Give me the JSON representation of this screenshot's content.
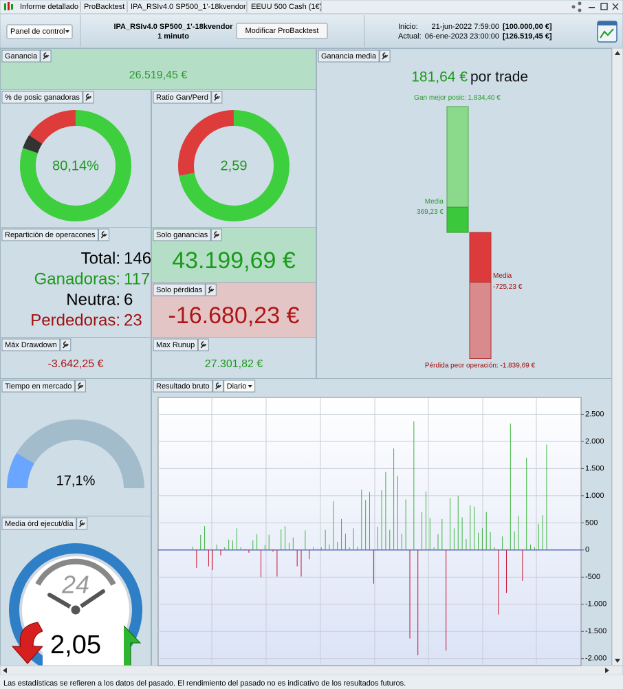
{
  "tabs": [
    "Informe detallado",
    "ProBacktest",
    "IPA_RSIv4.0 SP500_1'-18kvendor",
    "EEUU 500 Cash (1€)"
  ],
  "toolbar": {
    "panel_menu": "Panel de control",
    "strategy": "IPA_RSIv4.0 SP500_1'-18kvendor",
    "timeframe": "1 minuto",
    "button": "Modificar ProBacktest",
    "start_label": "Inicio:",
    "start_date": "21-jun-2022 7:59:00",
    "start_capital": "[100.000,00 €]",
    "current_label": "Actual:",
    "current_date": "06-ene-2023 23:00:00",
    "current_capital": "[126.519,45 €]"
  },
  "gain": {
    "title": "Ganancia",
    "value": "26.519,45 €"
  },
  "avg_gain": {
    "title": "Ganancia media",
    "value": "181,64 €",
    "unit": "por trade",
    "best": {
      "caption": "Gan mejor posic:",
      "value": 1834.4,
      "label": "1.834,40 €"
    },
    "win_mean": {
      "caption": "Media",
      "value": 369.23,
      "label": "369,23 €"
    },
    "loss_mean": {
      "caption": "Media",
      "value": -725.23,
      "label": "-725,23 €"
    },
    "worst": {
      "caption": "Pérdida peor operación:",
      "value": -1839.69,
      "label": "-1.839,69 €"
    }
  },
  "win_pct": {
    "title": "% de posic ganadoras",
    "value": 80.14,
    "label": "80,14%"
  },
  "ratio": {
    "title": "Ratio Gan/Perd",
    "value": 2.59,
    "label": "2,59"
  },
  "split": {
    "title": "Repartición de operacones",
    "total_label": "Total:",
    "total": 146,
    "win_label": "Ganadoras:",
    "win": 117,
    "neutral_label": "Neutra:",
    "neutral": 6,
    "loss_label": "Perdedoras:",
    "loss": 23
  },
  "only_gains": {
    "title": "Solo ganancias",
    "value": "43.199,69 €"
  },
  "only_losses": {
    "title": "Solo pérdidas",
    "value": "-16.680,23 €"
  },
  "drawdown": {
    "title": "Máx Drawdown",
    "value": "-3.642,25 €"
  },
  "runup": {
    "title": "Max Runup",
    "value": "27.301,82 €"
  },
  "market_time": {
    "title": "Tiempo en mercado",
    "value": 17.1,
    "label": "17,1%"
  },
  "orders": {
    "title": "Media órd ejecut/día",
    "clock": "24",
    "value": "2,05"
  },
  "chart_data": {
    "type": "bar",
    "title": "Resultado bruto",
    "period": "Diario",
    "values": [
      60,
      -330,
      280,
      440,
      -300,
      -370,
      100,
      -100,
      50,
      190,
      180,
      400,
      50,
      20,
      -50,
      180,
      290,
      -500,
      90,
      280,
      -30,
      -490,
      380,
      440,
      130,
      230,
      -300,
      -490,
      360,
      -170,
      50,
      20,
      50,
      370,
      100,
      900,
      150,
      570,
      300,
      50,
      400,
      60,
      1110,
      920,
      1070,
      -620,
      430,
      1100,
      1440,
      370,
      1870,
      1370,
      300,
      930,
      -1630,
      2370,
      -1940,
      700,
      1080,
      590,
      50,
      290,
      570,
      -1850,
      960,
      400,
      1000,
      600,
      200,
      820,
      800,
      320,
      400,
      700,
      330,
      50,
      -1190,
      250,
      -790,
      2330,
      340,
      630,
      -570,
      1700,
      100,
      50,
      480,
      640,
      1940
    ],
    "ylim": [
      -2130,
      2810
    ],
    "yticks": [
      {
        "value": -2000,
        "label": "-2.000"
      },
      {
        "value": -1500,
        "label": "-1.500"
      },
      {
        "value": -1000,
        "label": "-1.000"
      },
      -500,
      0,
      500,
      {
        "value": 1000,
        "label": "1.000"
      },
      {
        "value": 1500,
        "label": "1.500"
      },
      {
        "value": 2000,
        "label": "2.000"
      },
      {
        "value": 2500,
        "label": "2.500"
      }
    ],
    "grid": true,
    "positive_color": "#3cb43c",
    "negative_color": "#c8102e"
  },
  "footer": "Las estadísticas se refieren a los datos del pasado. El rendimiento del pasado no es indicativo de los resultados futuros."
}
